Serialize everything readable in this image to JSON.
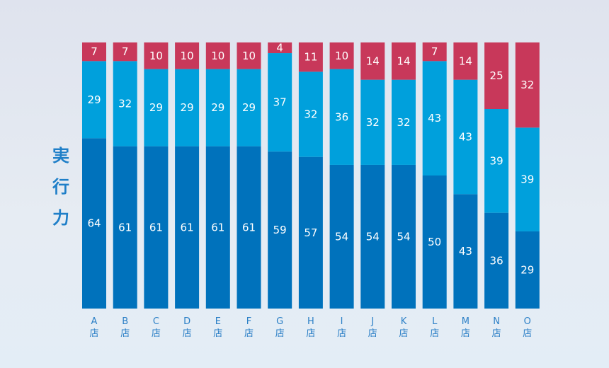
{
  "chart_data": {
    "type": "bar",
    "stacked": true,
    "ylabel": "実行力",
    "categories": [
      "A店",
      "B店",
      "C店",
      "D店",
      "E店",
      "F店",
      "G店",
      "H店",
      "I店",
      "J店",
      "K店",
      "L店",
      "M店",
      "N店",
      "O店"
    ],
    "category_letters": [
      "A",
      "B",
      "C",
      "D",
      "E",
      "F",
      "G",
      "H",
      "I",
      "J",
      "K",
      "L",
      "M",
      "N",
      "O"
    ],
    "category_suffix": "店",
    "ylim": [
      0,
      100
    ],
    "grid": false,
    "legend": "none",
    "series": [
      {
        "values": [
          64,
          61,
          61,
          61,
          61,
          61,
          59,
          57,
          54,
          54,
          54,
          50,
          43,
          36,
          29
        ],
        "color": "#0072bc"
      },
      {
        "values": [
          29,
          32,
          29,
          29,
          29,
          29,
          37,
          32,
          36,
          32,
          32,
          43,
          43,
          39,
          39
        ],
        "color": "#00a0dc"
      },
      {
        "values": [
          7,
          7,
          10,
          10,
          10,
          10,
          4,
          11,
          10,
          14,
          14,
          7,
          14,
          25,
          32
        ],
        "color": "#c8385a"
      }
    ]
  }
}
